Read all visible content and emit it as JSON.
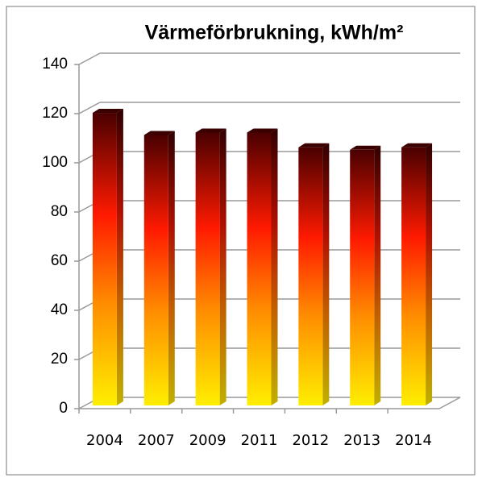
{
  "chart_data": {
    "type": "bar",
    "title": "Värmeförbrukning, kWh/m²",
    "categories": [
      "2004",
      "2007",
      "2009",
      "2011",
      "2012",
      "2013",
      "2014"
    ],
    "values": [
      119,
      110,
      111,
      111,
      105,
      104,
      105
    ],
    "ylim": [
      0,
      140
    ],
    "yticks": [
      0,
      20,
      40,
      60,
      80,
      100,
      120,
      140
    ],
    "grid": true
  }
}
